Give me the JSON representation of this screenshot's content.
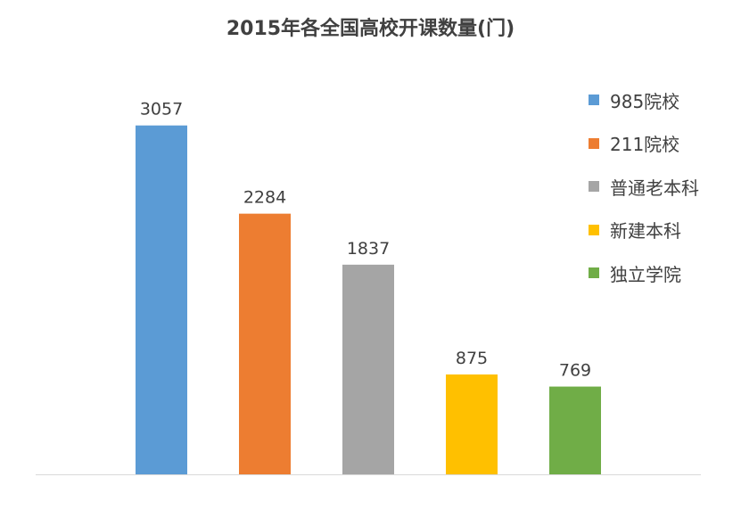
{
  "chart_data": {
    "type": "bar",
    "title": "2015年各全国高校开课数量(门)",
    "xlabel": "",
    "ylabel": "",
    "ylim": [
      0,
      3500
    ],
    "grid": false,
    "legend_position": "right",
    "categories": [
      "985院校",
      "211院校",
      "普通老本科",
      "新建本科",
      "独立学院"
    ],
    "values": [
      3057,
      2284,
      1837,
      875,
      769
    ],
    "colors": [
      "#5B9BD5",
      "#ED7D31",
      "#A5A5A5",
      "#FFC000",
      "#70AD47"
    ],
    "data_labels": [
      "3057",
      "2284",
      "1837",
      "875",
      "769"
    ]
  }
}
